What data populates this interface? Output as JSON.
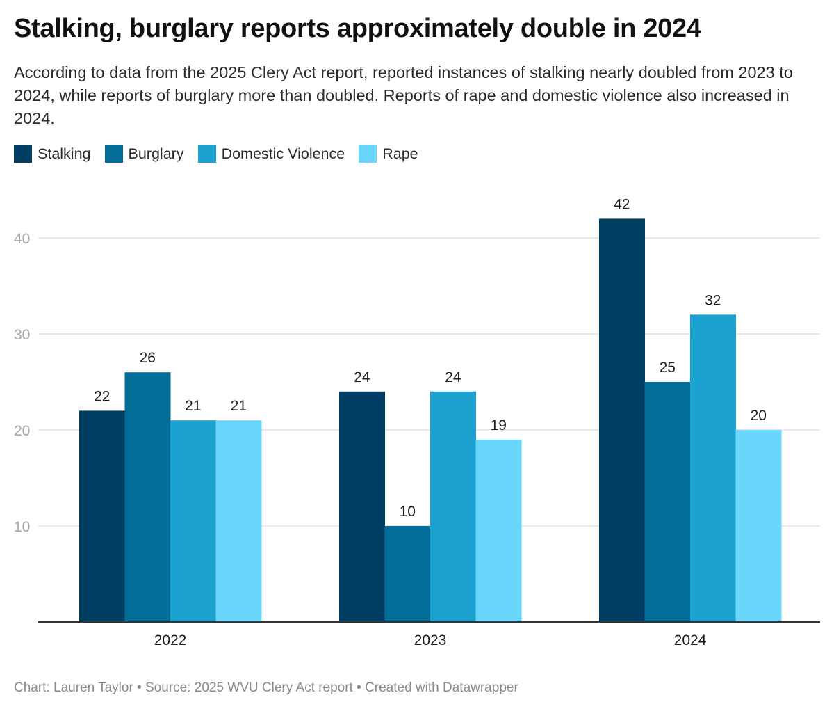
{
  "chart_data": {
    "type": "bar",
    "title": "Stalking, burglary reports approximately double in 2024",
    "subtitle": "According to data from the 2025 Clery Act report, reported instances of stalking nearly doubled from 2023 to 2024, while reports of burglary more than doubled. Reports of rape and domestic violence also increased in 2024.",
    "categories": [
      "2022",
      "2023",
      "2024"
    ],
    "series": [
      {
        "name": "Stalking",
        "color": "#003f63",
        "values": [
          22,
          24,
          42
        ]
      },
      {
        "name": "Burglary",
        "color": "#026e98",
        "values": [
          26,
          10,
          25
        ]
      },
      {
        "name": "Domestic Violence",
        "color": "#1ba1cf",
        "values": [
          21,
          24,
          32
        ]
      },
      {
        "name": "Rape",
        "color": "#6ad6fb",
        "values": [
          21,
          19,
          20
        ]
      }
    ],
    "xlabel": "",
    "ylabel": "",
    "ylim": [
      0,
      45
    ],
    "yticks": [
      10,
      20,
      30,
      40
    ],
    "grid": true,
    "legend_position": "top-left",
    "data_labels": true
  },
  "footer": "Chart: Lauren Taylor • Source: 2025 WVU Clery Act report • Created with Datawrapper"
}
